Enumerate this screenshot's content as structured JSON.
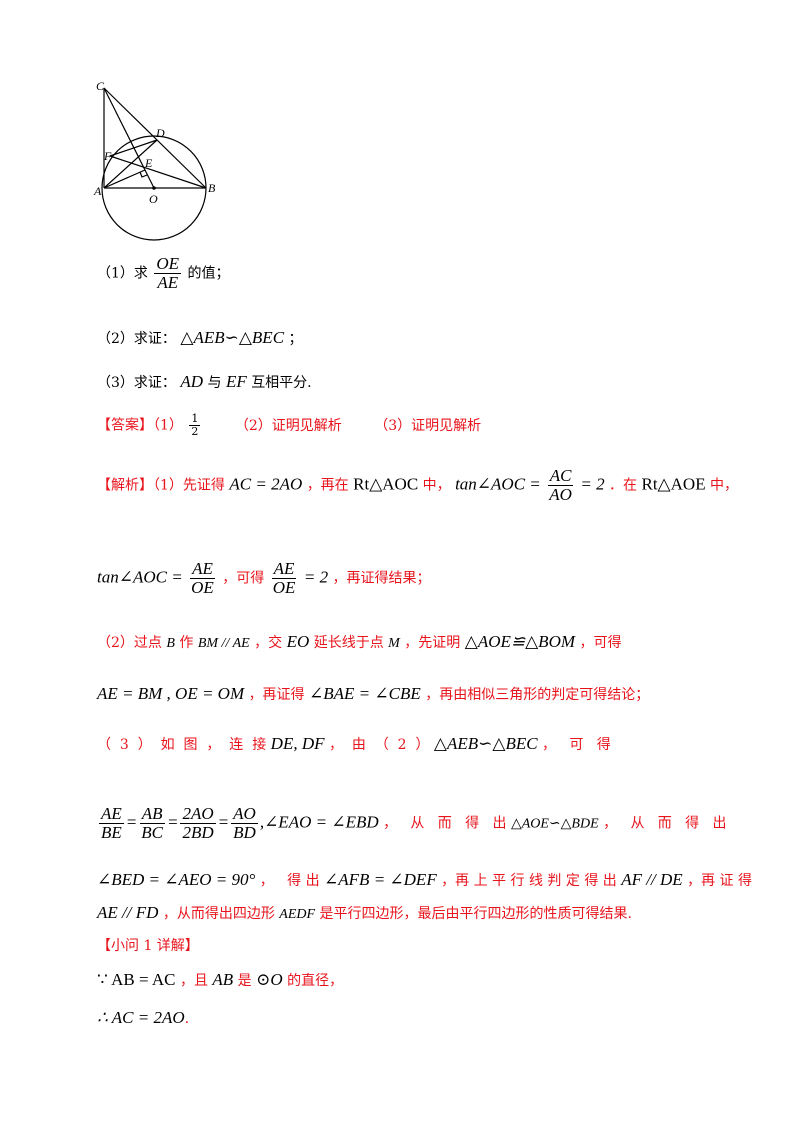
{
  "figure": {
    "points": {
      "C": "C",
      "D": "D",
      "F": "F",
      "E": "E",
      "A": "A",
      "O": "O",
      "B": "B"
    }
  },
  "questions": {
    "q1_prefix": "（1）求",
    "q1_num": "OE",
    "q1_den": "AE",
    "q1_suffix": "的值；",
    "q2_prefix": "（2）求证：",
    "q2_math": "△AEB∽△BEC",
    "q2_suffix": "；",
    "q3_prefix": "（3）求证：",
    "q3_ad": "AD",
    "q3_mid": "与",
    "q3_ef": "EF",
    "q3_suffix": "互相平分."
  },
  "answer": {
    "label": "【答案】（1）",
    "a1_num": "1",
    "a1_den": "2",
    "a2": "（2）证明见解析",
    "a3": "（3）证明见解析"
  },
  "analysis": {
    "label": "【解析】（1）先证得",
    "l1_m1": "AC = 2AO",
    "l1_t1": "，再在",
    "l1_m2": "Rt△AOC",
    "l1_t2": "中，",
    "l1_m3a": "tan∠AOC =",
    "l1_f1_num": "AC",
    "l1_f1_den": "AO",
    "l1_m3b": "= 2",
    "l1_t3": "．在",
    "l1_m4": "Rt△AOE",
    "l1_t4": "中，",
    "l2_m1": "tan∠AOC =",
    "l2_f1_num": "AE",
    "l2_f1_den": "OE",
    "l2_t1": "，可得",
    "l2_f2_num": "AE",
    "l2_f2_den": "OE",
    "l2_m2": "= 2",
    "l2_t2": "，再证得结果；",
    "l3_t1": "（2）过点",
    "l3_m1": "B",
    "l3_t2": "作",
    "l3_m2": "BM // AE",
    "l3_t3": "，交",
    "l3_m3": "EO",
    "l3_t4": "延长线于点",
    "l3_m4": "M",
    "l3_t5": "，先证明",
    "l3_m5": "△AOE≌△BOM",
    "l3_t6": "，可得",
    "l4_m1": "AE = BM , OE = OM",
    "l4_t1": "，再证得",
    "l4_m2": "∠BAE = ∠CBE",
    "l4_t2": "，再由相似三角形的判定可得结论；",
    "l5_t1": "（  3  ）  如  图  ，  连  接",
    "l5_m1": "DE, DF",
    "l5_t2": "，  由  （  2  ）",
    "l5_m2": "△AEB∽△BEC",
    "l5_t3": "，   可   得",
    "l6_f1_num": "AE",
    "l6_f1_den": "BE",
    "l6_f2_num": "AB",
    "l6_f2_den": "BC",
    "l6_f3_num": "2AO",
    "l6_f3_den": "2BD",
    "l6_f4_num": "AO",
    "l6_f4_den": "BD",
    "l6_m1": ",∠EAO = ∠EBD",
    "l6_t1": "，   从   而   得   出",
    "l6_m2": "△AOE∽△BDE",
    "l6_t2": "，   从   而   得   出",
    "l7_m1": "∠BED = ∠AEO = 90°",
    "l7_t1": "，   得 出",
    "l7_m2": "∠AFB = ∠DEF",
    "l7_t2": "，再 上 平 行 线 判 定 得 出",
    "l7_m3": "AF // DE",
    "l7_t3": "，再 证 得",
    "l8_m1": "AE // FD",
    "l8_t1": "，从而得出四边形",
    "l8_m2": "AEDF",
    "l8_t2": "是平行四边形，最后由平行四边形的性质可得结果."
  },
  "detail": {
    "label": "【小问 1 详解】",
    "l1_m1": "∵ AB = AC",
    "l1_t1": "，且",
    "l1_m2": "AB",
    "l1_t2": "是",
    "l1_m3": "⊙O",
    "l1_t3": "的直径，",
    "l2_m1": "∴ AC = 2AO",
    "l2_t1": "."
  }
}
